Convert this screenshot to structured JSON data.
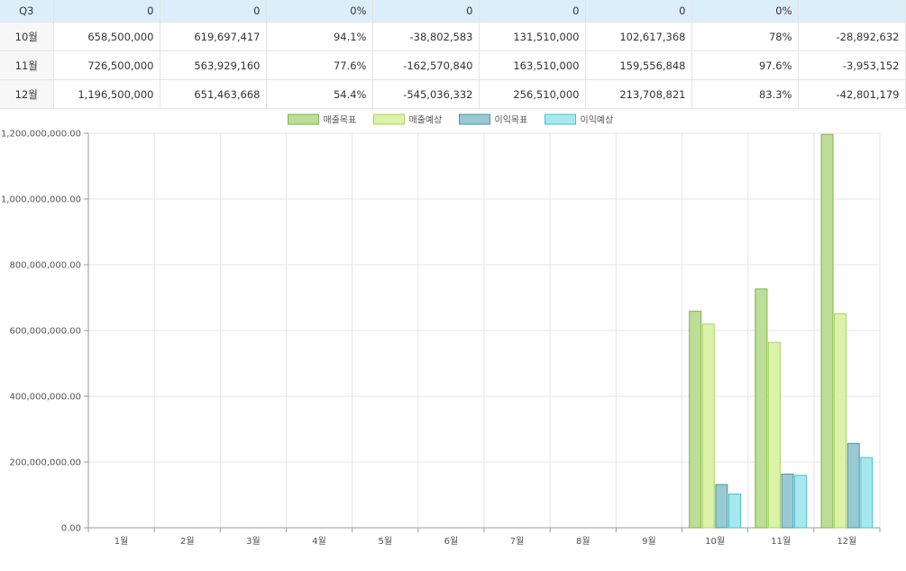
{
  "table": {
    "rows": [
      {
        "label": "Q3",
        "cells": [
          "0",
          "0",
          "0%",
          "0",
          "0",
          "0",
          "0%",
          ""
        ]
      },
      {
        "label": "10월",
        "cells": [
          "658,500,000",
          "619,697,417",
          "94.1%",
          "-38,802,583",
          "131,510,000",
          "102,617,368",
          "78%",
          "-28,892,632"
        ]
      },
      {
        "label": "11월",
        "cells": [
          "726,500,000",
          "563,929,160",
          "77.6%",
          "-162,570,840",
          "163,510,000",
          "159,556,848",
          "97.6%",
          "-3,953,152"
        ]
      },
      {
        "label": "12월",
        "cells": [
          "1,196,500,000",
          "651,463,668",
          "54.4%",
          "-545,036,332",
          "256,510,000",
          "213,708,821",
          "83.3%",
          "-42,801,179"
        ]
      }
    ]
  },
  "chart_data": {
    "type": "bar",
    "categories": [
      "1월",
      "2월",
      "3월",
      "4월",
      "5월",
      "6월",
      "7월",
      "8월",
      "9월",
      "10월",
      "11월",
      "12월"
    ],
    "series": [
      {
        "name": "매출목표",
        "values": [
          0,
          0,
          0,
          0,
          0,
          0,
          0,
          0,
          0,
          658500000,
          726500000,
          1196500000
        ],
        "fill": "#bddd98",
        "stroke": "#7ab648"
      },
      {
        "name": "매출예상",
        "values": [
          0,
          0,
          0,
          0,
          0,
          0,
          0,
          0,
          0,
          619697417,
          563929160,
          651463668
        ],
        "fill": "#dcf2a8",
        "stroke": "#a9d660"
      },
      {
        "name": "이익목표",
        "values": [
          0,
          0,
          0,
          0,
          0,
          0,
          0,
          0,
          0,
          131510000,
          163510000,
          256510000
        ],
        "fill": "#99c9d3",
        "stroke": "#4f95a6"
      },
      {
        "name": "이익예상",
        "values": [
          0,
          0,
          0,
          0,
          0,
          0,
          0,
          0,
          0,
          102617368,
          159556848,
          213708821
        ],
        "fill": "#a6e8ee",
        "stroke": "#48c2cf"
      }
    ],
    "yticks": [
      "0.00",
      "200,000,000.00",
      "400,000,000.00",
      "600,000,000.00",
      "800,000,000.00",
      "1,000,000,000.00",
      "1,200,000,000.00"
    ],
    "ylim": [
      0,
      1200000000
    ],
    "grid": true,
    "legend": "top-center"
  }
}
